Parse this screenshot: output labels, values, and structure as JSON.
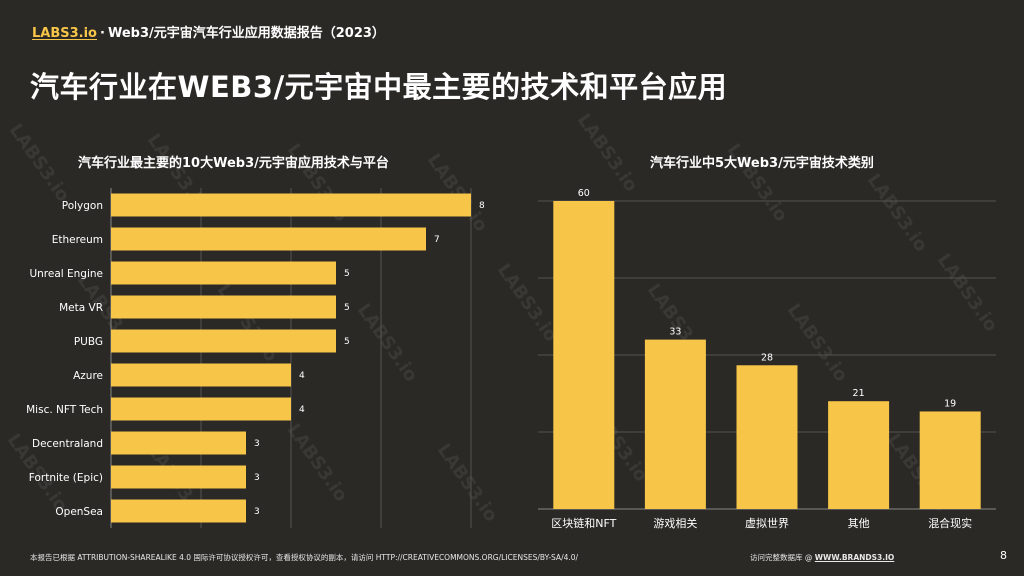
{
  "header": {
    "brand": "LABS3.io",
    "separator": "·",
    "report_title": "Web3/元宇宙汽车行业应用数据报告（2023）"
  },
  "page_title": "汽车行业在WEB3/元宇宙中最主要的技术和平台应用",
  "watermark_text": "LABS3.io",
  "colors": {
    "bar": "#f7c548",
    "background": "#2b2926",
    "grid": "#555350",
    "text": "#ffffff"
  },
  "chart_data": [
    {
      "type": "bar",
      "orientation": "horizontal",
      "title": "汽车行业最主要的10大Web3/元宇宙应用技术与平台",
      "categories": [
        "Polygon",
        "Ethereum",
        "Unreal Engine",
        "Meta VR",
        "PUBG",
        "Azure",
        "Misc. NFT Tech",
        "Decentraland",
        "Fortnite (Epic)",
        "OpenSea"
      ],
      "values": [
        8,
        7,
        5,
        5,
        5,
        4,
        4,
        3,
        3,
        3
      ],
      "xlim": [
        0,
        8
      ],
      "grid": true,
      "xlabel": "",
      "ylabel": ""
    },
    {
      "type": "bar",
      "orientation": "vertical",
      "title": "汽车行业中5大Web3/元宇宙技术类别",
      "categories": [
        "区块链和NFT",
        "游戏相关",
        "虚拟世界",
        "其他",
        "混合现实"
      ],
      "values": [
        60,
        33,
        28,
        21,
        19
      ],
      "ylim": [
        0,
        60
      ],
      "grid": true,
      "xlabel": "",
      "ylabel": ""
    }
  ],
  "footer": {
    "license": "本报告已根据 ATTRIBUTION-SHAREALIKE 4.0 国际许可协议授权许可，查看授权协议的副本，请访问 HTTP://CREATIVECOMMONS.ORG/LICENSES/BY-SA/4.0/",
    "database_prefix": "访问完整数据库 @ ",
    "database_link": "WWW.BRANDS3.IO",
    "page_number": "8"
  }
}
